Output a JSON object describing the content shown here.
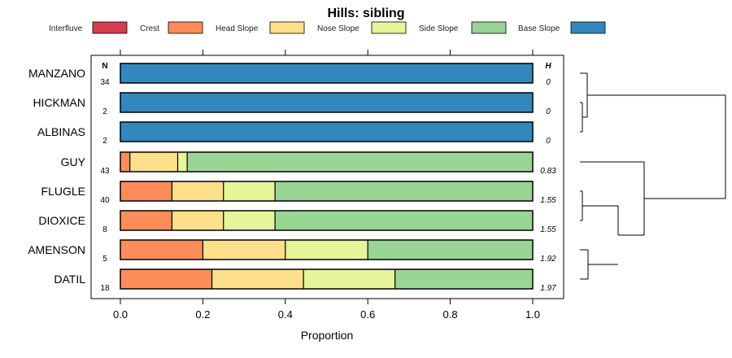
{
  "chart_data": {
    "type": "bar",
    "stacked": true,
    "orientation": "horizontal",
    "title": "Hills: sibling",
    "xlabel": "Proportion",
    "xlim": [
      0,
      1
    ],
    "xticks": [
      "0.0",
      "0.2",
      "0.4",
      "0.6",
      "0.8",
      "1.0"
    ],
    "xtick_values": [
      0,
      0.2,
      0.4,
      0.6,
      0.8,
      1.0
    ],
    "n_header": "N",
    "h_header": "H",
    "legend": [
      {
        "name": "Interfluve",
        "color": "#D53E4F"
      },
      {
        "name": "Crest",
        "color": "#FC8D59"
      },
      {
        "name": "Head Slope",
        "color": "#FEE08B"
      },
      {
        "name": "Nose Slope",
        "color": "#E6F598"
      },
      {
        "name": "Side Slope",
        "color": "#99D594"
      },
      {
        "name": "Base Slope",
        "color": "#3288BD"
      }
    ],
    "rows": [
      {
        "label": "MANZANO",
        "n": "34",
        "h": "0",
        "values": [
          0,
          0,
          0,
          0,
          0,
          1.0
        ]
      },
      {
        "label": "HICKMAN",
        "n": "2",
        "h": "0",
        "values": [
          0,
          0,
          0,
          0,
          0,
          1.0
        ]
      },
      {
        "label": "ALBINAS",
        "n": "2",
        "h": "0",
        "values": [
          0,
          0,
          0,
          0,
          0,
          1.0
        ]
      },
      {
        "label": "GUY",
        "n": "43",
        "h": "0.83",
        "values": [
          0,
          0.023,
          0.116,
          0.023,
          0.838,
          0
        ]
      },
      {
        "label": "FLUGLE",
        "n": "40",
        "h": "1.55",
        "values": [
          0,
          0.125,
          0.125,
          0.125,
          0.625,
          0
        ]
      },
      {
        "label": "DIOXICE",
        "n": "8",
        "h": "1.55",
        "values": [
          0,
          0.125,
          0.125,
          0.125,
          0.625,
          0
        ]
      },
      {
        "label": "AMENSON",
        "n": "5",
        "h": "1.92",
        "values": [
          0,
          0.2,
          0.2,
          0.2,
          0.4,
          0
        ]
      },
      {
        "label": "DATIL",
        "n": "18",
        "h": "1.97",
        "values": [
          0,
          0.222,
          0.222,
          0.222,
          0.334,
          0
        ]
      }
    ],
    "dendrogram": {
      "leaves": [
        "MANZANO",
        "HICKMAN",
        "ALBINAS",
        "GUY",
        "FLUGLE",
        "DIOXICE",
        "AMENSON",
        "DATIL"
      ],
      "merges": [
        {
          "a": "HICKMAN",
          "b": "ALBINAS",
          "height": 0.02
        },
        {
          "a": "MANZANO",
          "b": "HICKMAN+ALBINAS",
          "height": 0.04
        },
        {
          "a": "FLUGLE",
          "b": "DIOXICE",
          "height": 0.02
        },
        {
          "a": "AMENSON",
          "b": "DATIL",
          "height": 0.06
        },
        {
          "a": "FLUGLE+DIOXICE",
          "b": "AMENSON+DATIL",
          "height": 0.26
        },
        {
          "a": "GUY",
          "b": "FLUGLE+DIOXICE+AMENSON+DATIL",
          "height": 0.44
        },
        {
          "a": "MANZANO+HICKMAN+ALBINAS",
          "b": "rest",
          "height": 1.0
        }
      ]
    }
  }
}
